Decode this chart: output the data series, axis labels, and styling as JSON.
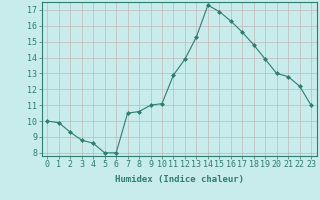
{
  "x": [
    0,
    1,
    2,
    3,
    4,
    5,
    6,
    7,
    8,
    9,
    10,
    11,
    12,
    13,
    14,
    15,
    16,
    17,
    18,
    19,
    20,
    21,
    22,
    23
  ],
  "y": [
    10.0,
    9.9,
    9.3,
    8.8,
    8.6,
    8.0,
    8.0,
    10.5,
    10.6,
    11.0,
    11.1,
    12.9,
    13.9,
    15.3,
    17.3,
    16.9,
    16.3,
    15.6,
    14.8,
    13.9,
    13.0,
    12.8,
    12.2,
    11.0
  ],
  "line_color": "#2e7d6e",
  "marker": "D",
  "marker_size": 2.0,
  "bg_color": "#c8ecec",
  "grid_color": "#c0b8b8",
  "xlabel": "Humidex (Indice chaleur)",
  "xlim": [
    -0.5,
    23.5
  ],
  "ylim": [
    7.8,
    17.5
  ],
  "yticks": [
    8,
    9,
    10,
    11,
    12,
    13,
    14,
    15,
    16,
    17
  ],
  "xticks": [
    0,
    1,
    2,
    3,
    4,
    5,
    6,
    7,
    8,
    9,
    10,
    11,
    12,
    13,
    14,
    15,
    16,
    17,
    18,
    19,
    20,
    21,
    22,
    23
  ],
  "label_fontsize": 6.5,
  "tick_fontsize": 6.0
}
